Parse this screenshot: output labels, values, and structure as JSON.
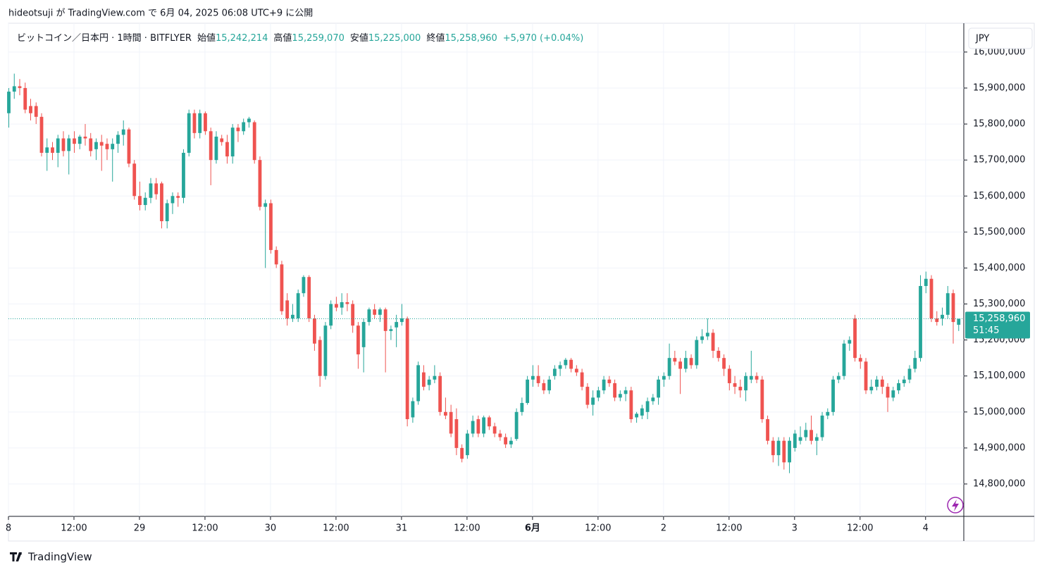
{
  "header": "hideotsuji が TradingView.com で 6月 04, 2025 06:08 UTC+9 に公開",
  "brand": "TradingView",
  "chart_data": {
    "type": "candlestick",
    "symbol": "ビットコイン／日本円 · 1時間 · BITFLYER",
    "legend": [
      {
        "label": "始値",
        "value": "15,242,214"
      },
      {
        "label": "高値",
        "value": "15,259,070"
      },
      {
        "label": "安値",
        "value": "15,225,000"
      },
      {
        "label": "終値",
        "value": "15,258,960"
      }
    ],
    "change": "+5,970 (+0.04%)",
    "currency": "JPY",
    "countdown": "51:45",
    "last_price": {
      "value": 15258960,
      "label": "15,258,960"
    },
    "up_color": "#26a69a",
    "down_color": "#ef5350",
    "grid": true,
    "xlim": [
      0,
      175
    ],
    "xticks": [
      {
        "value": 0,
        "label": "8"
      },
      {
        "value": 12,
        "label": "12:00"
      },
      {
        "value": 24,
        "label": "29"
      },
      {
        "value": 36,
        "label": "12:00"
      },
      {
        "value": 48,
        "label": "30"
      },
      {
        "value": 60,
        "label": "12:00"
      },
      {
        "value": 72,
        "label": "31"
      },
      {
        "value": 84,
        "label": "12:00"
      },
      {
        "value": 96,
        "label": "6月"
      },
      {
        "value": 108,
        "label": "12:00"
      },
      {
        "value": 120,
        "label": "2"
      },
      {
        "value": 132,
        "label": "12:00"
      },
      {
        "value": 144,
        "label": "3"
      },
      {
        "value": 156,
        "label": "12:00"
      },
      {
        "value": 168,
        "label": "4"
      }
    ],
    "ylim": [
      14710000,
      16080000
    ],
    "yticks": [
      {
        "value": 14800000,
        "label": "14,800,000"
      },
      {
        "value": 14900000,
        "label": "14,900,000"
      },
      {
        "value": 15000000,
        "label": "15,000,000"
      },
      {
        "value": 15100000,
        "label": "15,100,000"
      },
      {
        "value": 15200000,
        "label": "15,200,000"
      },
      {
        "value": 15300000,
        "label": "15,300,000"
      },
      {
        "value": 15400000,
        "label": "15,400,000"
      },
      {
        "value": 15500000,
        "label": "15,500,000"
      },
      {
        "value": 15600000,
        "label": "15,600,000"
      },
      {
        "value": 15700000,
        "label": "15,700,000"
      },
      {
        "value": 15800000,
        "label": "15,800,000"
      },
      {
        "value": 15900000,
        "label": "15,900,000"
      },
      {
        "value": 16000000,
        "label": "16,000,000"
      }
    ],
    "ohlc": [
      [
        15830000,
        15900000,
        15790000,
        15890000
      ],
      [
        15890000,
        15940000,
        15870000,
        15905000
      ],
      [
        15905000,
        15925000,
        15880000,
        15900000
      ],
      [
        15900000,
        15915000,
        15830000,
        15840000
      ],
      [
        15850000,
        15870000,
        15810000,
        15830000
      ],
      [
        15850000,
        15860000,
        15800000,
        15820000
      ],
      [
        15820000,
        15830000,
        15710000,
        15720000
      ],
      [
        15720000,
        15760000,
        15670000,
        15735000
      ],
      [
        15735000,
        15750000,
        15700000,
        15720000
      ],
      [
        15720000,
        15770000,
        15680000,
        15760000
      ],
      [
        15760000,
        15780000,
        15710000,
        15725000
      ],
      [
        15725000,
        15770000,
        15660000,
        15760000
      ],
      [
        15760000,
        15780000,
        15720000,
        15745000
      ],
      [
        15745000,
        15770000,
        15730000,
        15765000
      ],
      [
        15765000,
        15800000,
        15740000,
        15760000
      ],
      [
        15760000,
        15775000,
        15710000,
        15725000
      ],
      [
        15730000,
        15760000,
        15700000,
        15750000
      ],
      [
        15750000,
        15770000,
        15670000,
        15740000
      ],
      [
        15745000,
        15760000,
        15700000,
        15730000
      ],
      [
        15730000,
        15760000,
        15640000,
        15745000
      ],
      [
        15745000,
        15780000,
        15720000,
        15770000
      ],
      [
        15770000,
        15810000,
        15740000,
        15785000
      ],
      [
        15785000,
        15790000,
        15680000,
        15690000
      ],
      [
        15690000,
        15700000,
        15590000,
        15600000
      ],
      [
        15600000,
        15640000,
        15560000,
        15575000
      ],
      [
        15575000,
        15610000,
        15560000,
        15595000
      ],
      [
        15595000,
        15650000,
        15580000,
        15635000
      ],
      [
        15635000,
        15650000,
        15590000,
        15605000
      ],
      [
        15635000,
        15640000,
        15510000,
        15530000
      ],
      [
        15530000,
        15590000,
        15510000,
        15580000
      ],
      [
        15580000,
        15610000,
        15550000,
        15600000
      ],
      [
        15600000,
        15610000,
        15570000,
        15595000
      ],
      [
        15595000,
        15730000,
        15580000,
        15720000
      ],
      [
        15720000,
        15840000,
        15710000,
        15830000
      ],
      [
        15830000,
        15840000,
        15760000,
        15775000
      ],
      [
        15775000,
        15840000,
        15760000,
        15830000
      ],
      [
        15830000,
        15835000,
        15770000,
        15780000
      ],
      [
        15780000,
        15790000,
        15630000,
        15700000
      ],
      [
        15700000,
        15780000,
        15690000,
        15765000
      ],
      [
        15760000,
        15770000,
        15740000,
        15750000
      ],
      [
        15750000,
        15770000,
        15690000,
        15710000
      ],
      [
        15710000,
        15800000,
        15690000,
        15790000
      ],
      [
        15790000,
        15800000,
        15750000,
        15780000
      ],
      [
        15780000,
        15815000,
        15770000,
        15805000
      ],
      [
        15805000,
        15820000,
        15790000,
        15815000
      ],
      [
        15805000,
        15810000,
        15690000,
        15700000
      ],
      [
        15700000,
        15710000,
        15560000,
        15570000
      ],
      [
        15570000,
        15590000,
        15400000,
        15580000
      ],
      [
        15580000,
        15590000,
        15440000,
        15450000
      ],
      [
        15450000,
        15460000,
        15400000,
        15410000
      ],
      [
        15410000,
        15420000,
        15270000,
        15280000
      ],
      [
        15310000,
        15330000,
        15240000,
        15260000
      ],
      [
        15260000,
        15300000,
        15250000,
        15270000
      ],
      [
        15260000,
        15340000,
        15250000,
        15330000
      ],
      [
        15330000,
        15380000,
        15320000,
        15375000
      ],
      [
        15375000,
        15380000,
        15250000,
        15260000
      ],
      [
        15260000,
        15270000,
        15170000,
        15190000
      ],
      [
        15200000,
        15210000,
        15070000,
        15100000
      ],
      [
        15100000,
        15250000,
        15090000,
        15240000
      ],
      [
        15240000,
        15310000,
        15230000,
        15300000
      ],
      [
        15300000,
        15320000,
        15280000,
        15290000
      ],
      [
        15290000,
        15330000,
        15270000,
        15305000
      ],
      [
        15305000,
        15330000,
        15280000,
        15300000
      ],
      [
        15300000,
        15310000,
        15220000,
        15240000
      ],
      [
        15240000,
        15250000,
        15120000,
        15160000
      ],
      [
        15180000,
        15260000,
        15110000,
        15250000
      ],
      [
        15250000,
        15290000,
        15240000,
        15285000
      ],
      [
        15285000,
        15300000,
        15260000,
        15270000
      ],
      [
        15270000,
        15290000,
        15250000,
        15285000
      ],
      [
        15285000,
        15290000,
        15110000,
        15225000
      ],
      [
        15225000,
        15240000,
        15200000,
        15230000
      ],
      [
        15235000,
        15270000,
        15180000,
        15250000
      ],
      [
        15250000,
        15300000,
        15240000,
        15260000
      ],
      [
        15260000,
        15265000,
        14960000,
        14980000
      ],
      [
        14985000,
        15040000,
        14970000,
        15030000
      ],
      [
        15030000,
        15140000,
        15020000,
        15130000
      ],
      [
        15110000,
        15130000,
        15060000,
        15070000
      ],
      [
        15075000,
        15100000,
        15060000,
        15090000
      ],
      [
        15090000,
        15130000,
        15080000,
        15100000
      ],
      [
        15100000,
        15110000,
        14990000,
        15000000
      ],
      [
        15000000,
        15040000,
        14980000,
        14990000
      ],
      [
        15000000,
        15020000,
        14930000,
        14940000
      ],
      [
        14980000,
        15010000,
        14880000,
        14900000
      ],
      [
        14900000,
        14910000,
        14860000,
        14870000
      ],
      [
        14880000,
        14950000,
        14870000,
        14940000
      ],
      [
        14940000,
        14990000,
        14930000,
        14975000
      ],
      [
        14980000,
        14990000,
        14930000,
        14940000
      ],
      [
        14940000,
        14990000,
        14930000,
        14985000
      ],
      [
        14985000,
        14990000,
        14950000,
        14960000
      ],
      [
        14960000,
        14970000,
        14930000,
        14940000
      ],
      [
        14940000,
        14950000,
        14920000,
        14930000
      ],
      [
        14930000,
        14940000,
        14900000,
        14910000
      ],
      [
        14910000,
        14930000,
        14900000,
        14920000
      ],
      [
        14925000,
        15010000,
        14920000,
        15000000
      ],
      [
        15000000,
        15040000,
        14990000,
        15025000
      ],
      [
        15025000,
        15100000,
        15020000,
        15090000
      ],
      [
        15090000,
        15130000,
        15070000,
        15100000
      ],
      [
        15100000,
        15130000,
        15070000,
        15080000
      ],
      [
        15080000,
        15090000,
        15050000,
        15060000
      ],
      [
        15060000,
        15100000,
        15050000,
        15090000
      ],
      [
        15100000,
        15130000,
        15090000,
        15120000
      ],
      [
        15120000,
        15140000,
        15100000,
        15130000
      ],
      [
        15130000,
        15150000,
        15120000,
        15145000
      ],
      [
        15145000,
        15150000,
        15110000,
        15120000
      ],
      [
        15120000,
        15130000,
        15100000,
        15110000
      ],
      [
        15110000,
        15120000,
        15060000,
        15070000
      ],
      [
        15070000,
        15080000,
        15010000,
        15020000
      ],
      [
        15020000,
        15060000,
        14990000,
        15040000
      ],
      [
        15040000,
        15070000,
        15030000,
        15060000
      ],
      [
        15060000,
        15100000,
        15050000,
        15090000
      ],
      [
        15090000,
        15100000,
        15070000,
        15080000
      ],
      [
        15080000,
        15090000,
        15030000,
        15040000
      ],
      [
        15040000,
        15060000,
        15030000,
        15050000
      ],
      [
        15050000,
        15070000,
        15030000,
        15060000
      ],
      [
        15060000,
        15070000,
        14970000,
        14980000
      ],
      [
        14985000,
        15000000,
        14970000,
        14995000
      ],
      [
        14990000,
        15020000,
        14980000,
        15010000
      ],
      [
        15000000,
        15040000,
        14980000,
        15030000
      ],
      [
        15030000,
        15050000,
        15020000,
        15040000
      ],
      [
        15040000,
        15100000,
        15020000,
        15090000
      ],
      [
        15090000,
        15110000,
        15070000,
        15100000
      ],
      [
        15100000,
        15190000,
        15090000,
        15150000
      ],
      [
        15150000,
        15170000,
        15130000,
        15140000
      ],
      [
        15140000,
        15150000,
        15050000,
        15120000
      ],
      [
        15120000,
        15170000,
        15110000,
        15150000
      ],
      [
        15150000,
        15160000,
        15120000,
        15130000
      ],
      [
        15130000,
        15210000,
        15120000,
        15200000
      ],
      [
        15200000,
        15230000,
        15190000,
        15210000
      ],
      [
        15210000,
        15260000,
        15200000,
        15220000
      ],
      [
        15220000,
        15230000,
        15150000,
        15170000
      ],
      [
        15170000,
        15180000,
        15140000,
        15150000
      ],
      [
        15150000,
        15160000,
        15100000,
        15120000
      ],
      [
        15120000,
        15130000,
        15060000,
        15080000
      ],
      [
        15080000,
        15100000,
        15050000,
        15070000
      ],
      [
        15070000,
        15090000,
        15040000,
        15060000
      ],
      [
        15060000,
        15110000,
        15030000,
        15100000
      ],
      [
        15090000,
        15170000,
        15080000,
        15100000
      ],
      [
        15100000,
        15110000,
        15080000,
        15090000
      ],
      [
        15090000,
        15100000,
        14970000,
        14980000
      ],
      [
        14980000,
        14990000,
        14910000,
        14920000
      ],
      [
        14920000,
        14930000,
        14860000,
        14880000
      ],
      [
        14880000,
        14930000,
        14850000,
        14920000
      ],
      [
        14920000,
        14930000,
        14840000,
        14860000
      ],
      [
        14860000,
        14930000,
        14830000,
        14920000
      ],
      [
        14900000,
        14950000,
        14890000,
        14940000
      ],
      [
        14920000,
        14960000,
        14910000,
        14930000
      ],
      [
        14930000,
        14970000,
        14920000,
        14950000
      ],
      [
        14950000,
        14990000,
        14910000,
        14920000
      ],
      [
        14920000,
        14940000,
        14880000,
        14930000
      ],
      [
        14930000,
        15000000,
        14920000,
        14990000
      ],
      [
        14990000,
        15010000,
        14980000,
        15000000
      ],
      [
        15000000,
        15100000,
        14990000,
        15090000
      ],
      [
        15090000,
        15110000,
        15080000,
        15100000
      ],
      [
        15100000,
        15200000,
        15090000,
        15190000
      ],
      [
        15190000,
        15210000,
        15170000,
        15200000
      ],
      [
        15260000,
        15270000,
        15140000,
        15150000
      ],
      [
        15150000,
        15160000,
        15120000,
        15140000
      ],
      [
        15140000,
        15150000,
        15050000,
        15060000
      ],
      [
        15060000,
        15090000,
        15050000,
        15070000
      ],
      [
        15070000,
        15100000,
        15060000,
        15090000
      ],
      [
        15090000,
        15100000,
        15050000,
        15070000
      ],
      [
        15070000,
        15080000,
        15000000,
        15040000
      ],
      [
        15040000,
        15070000,
        15030000,
        15060000
      ],
      [
        15060000,
        15090000,
        15050000,
        15080000
      ],
      [
        15080000,
        15100000,
        15070000,
        15090000
      ],
      [
        15090000,
        15130000,
        15080000,
        15120000
      ],
      [
        15120000,
        15170000,
        15110000,
        15150000
      ],
      [
        15150000,
        15380000,
        15140000,
        15350000
      ],
      [
        15350000,
        15390000,
        15330000,
        15370000
      ],
      [
        15370000,
        15380000,
        15250000,
        15260000
      ],
      [
        15260000,
        15280000,
        15240000,
        15250000
      ],
      [
        15260000,
        15290000,
        15240000,
        15270000
      ],
      [
        15270000,
        15350000,
        15260000,
        15330000
      ],
      [
        15330000,
        15340000,
        15190000,
        15250000
      ],
      [
        15242214,
        15259070,
        15225000,
        15258960
      ]
    ]
  }
}
